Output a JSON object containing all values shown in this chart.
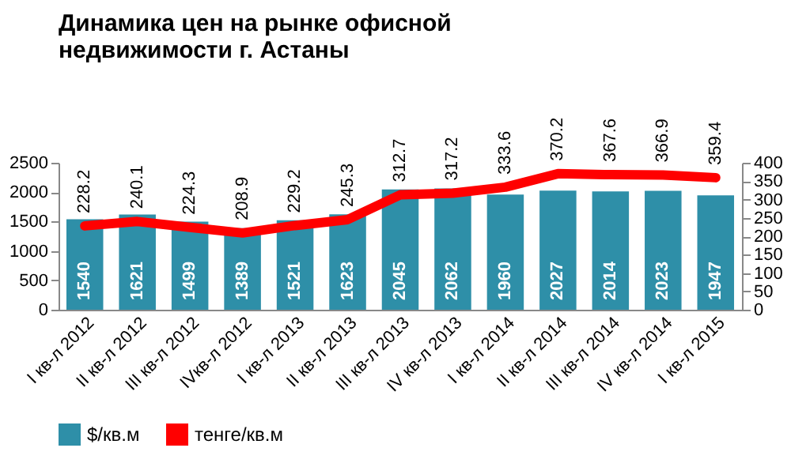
{
  "chart_data": {
    "type": "bar",
    "title": "Динамика цен на рынке офисной\nнедвижимости г. Астаны",
    "categories": [
      "I кв-л 2012",
      "II кв-л 2012",
      "III кв-л 2012",
      "IVкв-л 2012",
      "I кв-л 2013",
      "II кв-л 2013",
      "III кв-л 2013",
      "IV кв-л 2013",
      "I кв-л 2014",
      "II кв-л 2014",
      "III кв-л 2014",
      "IV кв-л 2014",
      "I кв-л 2015"
    ],
    "series": [
      {
        "name": "$/кв.м",
        "color": "#2e8fa8",
        "values": [
          1540,
          1621,
          1499,
          1389,
          1521,
          1623,
          2045,
          2062,
          1960,
          2027,
          2014,
          2023,
          1947
        ]
      },
      {
        "name": "тенге/кв.м",
        "type": "line",
        "axis": "y2",
        "color": "#ff0000",
        "values": [
          228.2,
          240.1,
          224.3,
          208.9,
          229.2,
          245.3,
          312.7,
          317.2,
          333.6,
          370.2,
          367.6,
          366.9,
          359.4
        ]
      }
    ],
    "ylim": [
      0,
      2500
    ],
    "yticks": [
      0,
      500,
      1000,
      1500,
      2000,
      2500
    ],
    "y2lim": [
      0,
      400
    ],
    "y2ticks": [
      0,
      50,
      100,
      150,
      200,
      250,
      300,
      350,
      400
    ],
    "data_labels": true,
    "legend": "bottom",
    "grid": false,
    "marker": "none",
    "line_style": "solid"
  }
}
